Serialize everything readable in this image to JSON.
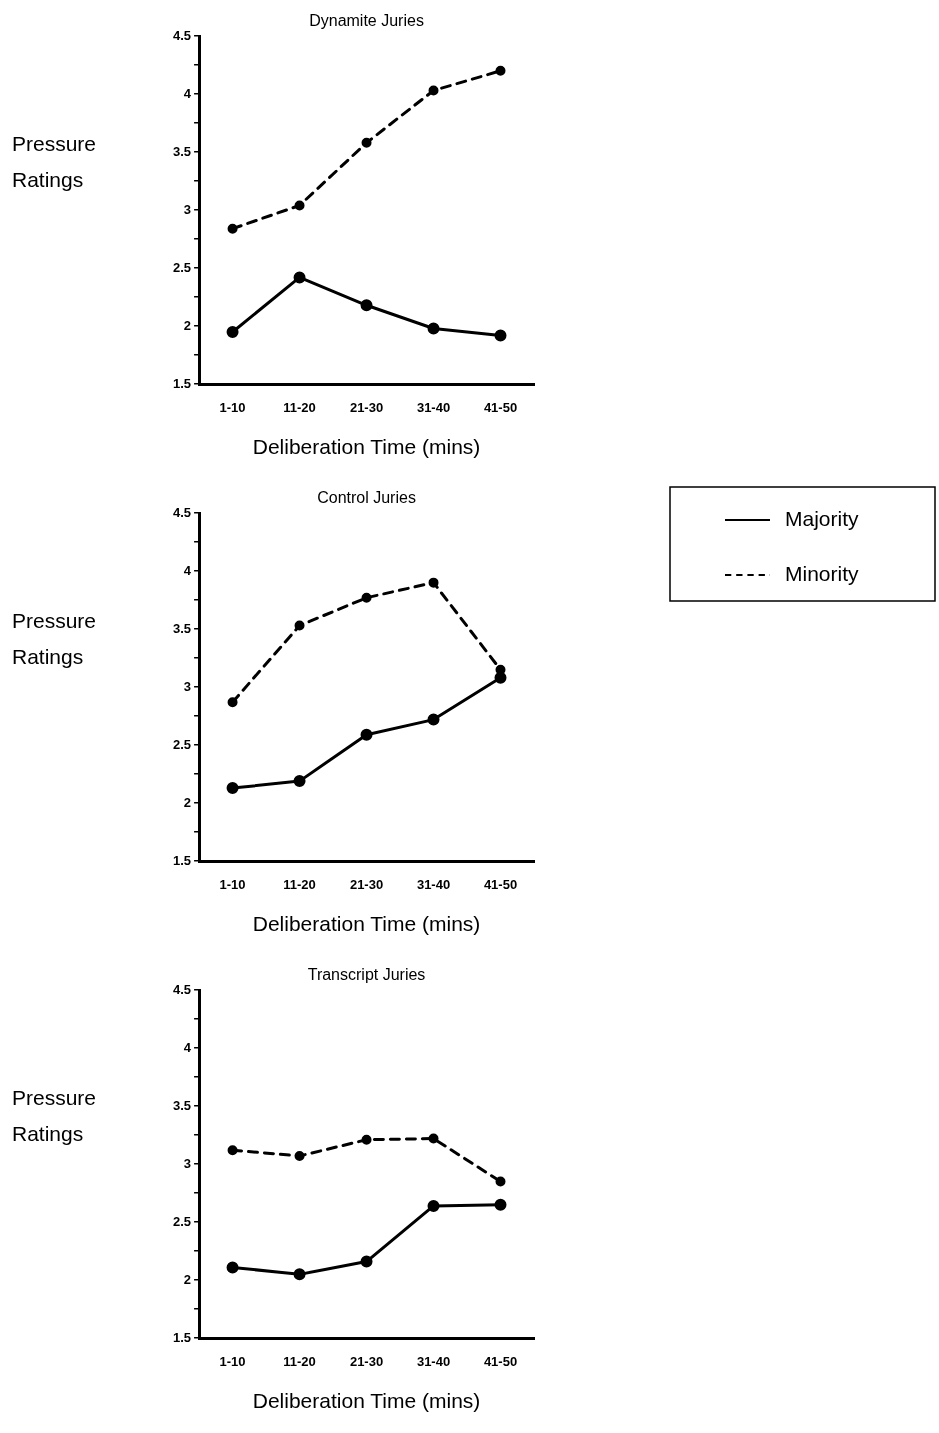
{
  "chart_data": [
    {
      "type": "line",
      "title": "Dynamite Juries",
      "xlabel": "Deliberation Time (mins)",
      "ylabel": "Pressure Ratings",
      "categories": [
        "1-10",
        "11-20",
        "21-30",
        "31-40",
        "41-50"
      ],
      "ylim": [
        1.5,
        4.5
      ],
      "yticks": [
        1.5,
        {
          "value": 1.75,
          "label": null
        },
        2,
        {
          "value": 2.25,
          "label": null
        },
        2.5,
        {
          "value": 2.75,
          "label": null
        },
        3,
        {
          "value": 3.25,
          "label": null
        },
        3.5,
        {
          "value": 3.75,
          "label": null
        },
        4,
        {
          "value": 4.25,
          "label": null
        },
        4.5
      ],
      "grid": false,
      "legend": false,
      "marker": "circle",
      "series": [
        {
          "color": "#000000",
          "line_style": "solid",
          "values": [
            1.95,
            2.42,
            2.18,
            1.98,
            1.92
          ]
        },
        {
          "color": "#000000",
          "line_style": "dashed",
          "values": [
            2.84,
            3.04,
            3.58,
            4.03,
            4.2
          ]
        }
      ]
    },
    {
      "type": "line",
      "title": "Control Juries",
      "xlabel": "Deliberation Time (mins)",
      "ylabel": "Pressure Ratings",
      "categories": [
        "1-10",
        "11-20",
        "21-30",
        "31-40",
        "41-50"
      ],
      "ylim": [
        1.5,
        4.5
      ],
      "yticks": [
        1.5,
        {
          "value": 1.75,
          "label": null
        },
        2,
        {
          "value": 2.25,
          "label": null
        },
        2.5,
        {
          "value": 2.75,
          "label": null
        },
        3,
        {
          "value": 3.25,
          "label": null
        },
        3.5,
        {
          "value": 3.75,
          "label": null
        },
        4,
        {
          "value": 4.25,
          "label": null
        },
        4.5
      ],
      "grid": false,
      "legend": "right",
      "marker": "circle",
      "series": [
        {
          "name": "Majority",
          "color": "#000000",
          "line_style": "solid",
          "values": [
            2.13,
            2.19,
            2.59,
            2.72,
            3.08
          ]
        },
        {
          "name": "Minority",
          "color": "#000000",
          "line_style": "dashed",
          "values": [
            2.87,
            3.53,
            3.77,
            3.9,
            3.15
          ]
        }
      ]
    },
    {
      "type": "line",
      "title": "Transcript Juries",
      "xlabel": "Deliberation Time (mins)",
      "ylabel": "Pressure Ratings",
      "categories": [
        "1-10",
        "11-20",
        "21-30",
        "31-40",
        "41-50"
      ],
      "ylim": [
        1.5,
        4.5
      ],
      "yticks": [
        1.5,
        {
          "value": 1.75,
          "label": null
        },
        2,
        {
          "value": 2.25,
          "label": null
        },
        2.5,
        {
          "value": 2.75,
          "label": null
        },
        3,
        {
          "value": 3.25,
          "label": null
        },
        3.5,
        {
          "value": 3.75,
          "label": null
        },
        4,
        {
          "value": 4.25,
          "label": null
        },
        4.5
      ],
      "grid": false,
      "legend": false,
      "marker": "circle",
      "series": [
        {
          "color": "#000000",
          "line_style": "solid",
          "values": [
            2.11,
            2.05,
            2.16,
            2.64,
            2.65
          ]
        },
        {
          "color": "#000000",
          "line_style": "dashed",
          "values": [
            3.12,
            3.07,
            3.21,
            3.22,
            2.85
          ]
        }
      ]
    }
  ]
}
